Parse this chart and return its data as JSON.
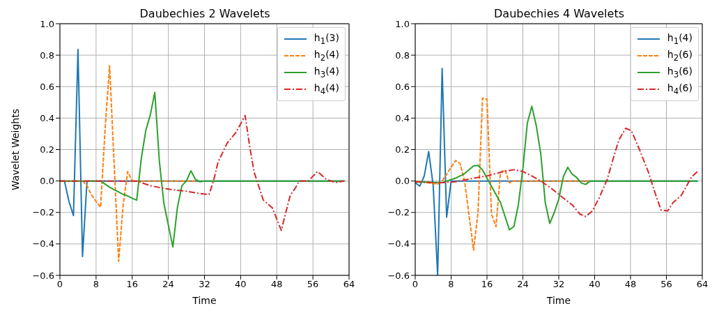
{
  "chart_data": [
    {
      "type": "line",
      "title": "Daubechies 2 Wavelets",
      "xlabel": "Time",
      "ylabel": "Wavelet Weights",
      "xlim": [
        0,
        64
      ],
      "xticks": [
        0,
        8,
        16,
        24,
        32,
        40,
        48,
        56,
        64
      ],
      "ylim": [
        -0.6,
        1.0
      ],
      "yticks": [
        {
          "value": -0.6,
          "label": "−0.6"
        },
        {
          "value": -0.4,
          "label": "−0.4"
        },
        {
          "value": -0.2,
          "label": "−0.2"
        },
        {
          "value": 0,
          "label": "0.0"
        },
        {
          "value": 0.2,
          "label": "0.2"
        },
        {
          "value": 0.4,
          "label": "0.4"
        },
        {
          "value": 0.6,
          "label": "0.6"
        },
        {
          "value": 0.8,
          "label": "0.8"
        },
        {
          "value": 1,
          "label": "1.0"
        }
      ],
      "grid": true,
      "legend": "top right",
      "marker": "none",
      "series": [
        {
          "name": "h$_{1}$(3)",
          "color": "#1f77b4",
          "line_style": "solid",
          "x": [
            0,
            1,
            2,
            3,
            4,
            5,
            6,
            63
          ],
          "values": [
            0,
            0,
            -0.13,
            -0.22,
            0.836,
            -0.48,
            0,
            0
          ]
        },
        {
          "name": "h$_{2}$(4)",
          "color": "#ff7f0e",
          "line_style": "dashed",
          "x": [
            0,
            5,
            6,
            7,
            8,
            9,
            10,
            11,
            12,
            13,
            14,
            15,
            16,
            30
          ],
          "values": [
            0,
            0,
            -0.03,
            -0.09,
            -0.13,
            -0.167,
            0.33,
            0.733,
            0.11,
            -0.51,
            -0.15,
            0.06,
            0,
            0
          ]
        },
        {
          "name": "h$_{3}$(4)",
          "color": "#2ca02c",
          "line_style": "solid",
          "x": [
            0,
            9,
            10,
            11,
            12,
            13,
            14,
            15,
            16,
            17,
            18,
            19,
            20,
            21,
            22,
            23,
            24,
            25,
            26,
            27,
            28,
            29,
            30,
            31,
            32,
            63
          ],
          "values": [
            0,
            0,
            -0.02,
            -0.04,
            -0.055,
            -0.07,
            -0.085,
            -0.095,
            -0.11,
            -0.122,
            0.14,
            0.32,
            0.42,
            0.563,
            0.13,
            -0.14,
            -0.28,
            -0.42,
            -0.17,
            -0.03,
            0,
            0.065,
            0.01,
            -0.005,
            0,
            0
          ]
        },
        {
          "name": "h$_{4}$(4)",
          "color": "#d62728",
          "line_style": "dashdot",
          "x": [
            0,
            17,
            18,
            20,
            22,
            25,
            28,
            31,
            33,
            34,
            35,
            37,
            39,
            41,
            42,
            43,
            45,
            47,
            49,
            50,
            51,
            52,
            53,
            55,
            57,
            59,
            61,
            63
          ],
          "values": [
            0,
            0,
            -0.01,
            -0.03,
            -0.041,
            -0.056,
            -0.065,
            -0.08,
            -0.086,
            0,
            0.12,
            0.24,
            0.31,
            0.416,
            0.22,
            0.055,
            -0.12,
            -0.17,
            -0.314,
            -0.2,
            -0.09,
            -0.05,
            0,
            0,
            0.06,
            0.01,
            -0.01,
            0
          ]
        }
      ]
    },
    {
      "type": "line",
      "title": "Daubechies 4 Wavelets",
      "xlabel": "Time",
      "xlim": [
        0,
        64
      ],
      "xticks": [
        0,
        8,
        16,
        24,
        32,
        40,
        48,
        56,
        64
      ],
      "ylim": [
        -0.6,
        1.0
      ],
      "yticks": [
        {
          "value": -0.6,
          "label": "−0.6"
        },
        {
          "value": -0.4,
          "label": "−0.4"
        },
        {
          "value": -0.2,
          "label": "−0.2"
        },
        {
          "value": 0,
          "label": "0.0"
        },
        {
          "value": 0.2,
          "label": "0.2"
        },
        {
          "value": 0.4,
          "label": "0.4"
        },
        {
          "value": 0.6,
          "label": "0.6"
        },
        {
          "value": 0.8,
          "label": "0.8"
        },
        {
          "value": 1,
          "label": "1.0"
        }
      ],
      "grid": true,
      "legend": "top right",
      "marker": "none",
      "series": [
        {
          "name": "h$_{1}$(4)",
          "color": "#1f77b4",
          "line_style": "solid",
          "x": [
            0,
            1,
            2,
            3,
            4,
            5,
            6,
            7,
            8,
            63
          ],
          "values": [
            -0.011,
            -0.033,
            0.031,
            0.187,
            -0.028,
            -0.6,
            0.715,
            -0.23,
            0,
            0
          ]
        },
        {
          "name": "h$_{2}$(6)",
          "color": "#ff7f0e",
          "line_style": "dashed",
          "x": [
            0,
            5,
            6,
            9,
            10,
            11,
            13,
            14,
            15,
            16,
            17,
            18,
            19,
            20,
            21,
            22,
            39
          ],
          "values": [
            0,
            -0.02,
            0,
            0.13,
            0.11,
            0,
            -0.44,
            -0.2,
            0.527,
            0.52,
            -0.21,
            -0.29,
            0.055,
            0.07,
            -0.012,
            0,
            0
          ]
        },
        {
          "name": "h$_{3}$(6)",
          "color": "#2ca02c",
          "line_style": "solid",
          "x": [
            0,
            6,
            9,
            11,
            13,
            14,
            15,
            17,
            19,
            21,
            22,
            23,
            24,
            25,
            26,
            27,
            28,
            29,
            30,
            31,
            32,
            33,
            34,
            35,
            36,
            37,
            38,
            39,
            63
          ],
          "values": [
            -0.005,
            -0.01,
            0.018,
            0.047,
            0.096,
            0.099,
            0.07,
            -0.034,
            -0.137,
            -0.31,
            -0.29,
            -0.15,
            0.08,
            0.37,
            0.475,
            0.35,
            0.17,
            -0.14,
            -0.27,
            -0.2,
            -0.115,
            0.025,
            0.087,
            0.043,
            0.022,
            -0.012,
            -0.022,
            0,
            0
          ]
        },
        {
          "name": "h$_{4}$(6)",
          "color": "#d62728",
          "line_style": "dashdot",
          "x": [
            0,
            5,
            9,
            13,
            16,
            20,
            22,
            24,
            26,
            28,
            30.5,
            33,
            35,
            36.7,
            38,
            39.5,
            41,
            42.8,
            44.3,
            45.4,
            46.9,
            48.2,
            50,
            52,
            53.5,
            54.8,
            56.3,
            57.5,
            59.3,
            61.6,
            63
          ],
          "values": [
            -0.005,
            -0.012,
            -0.005,
            0.018,
            0.032,
            0.062,
            0.072,
            0.06,
            0.032,
            0,
            -0.05,
            -0.108,
            -0.152,
            -0.21,
            -0.226,
            -0.19,
            -0.108,
            0.01,
            0.158,
            0.26,
            0.335,
            0.32,
            0.2,
            0.055,
            -0.078,
            -0.184,
            -0.19,
            -0.137,
            -0.093,
            0.025,
            0.062
          ]
        }
      ]
    }
  ]
}
